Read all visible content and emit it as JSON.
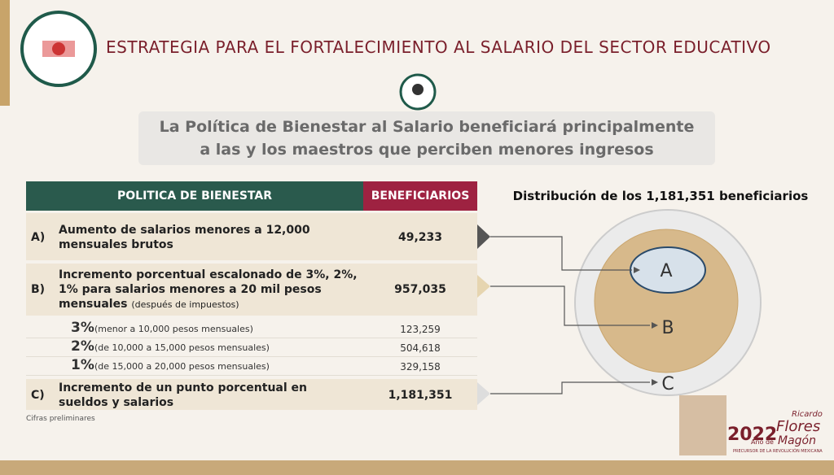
{
  "header": {
    "title": "ESTRATEGIA PARA EL FORTALECIMIENTO AL SALARIO DEL SECTOR EDUCATIVO",
    "subtitle_lines": [
      "La Política de Bienestar al Salario beneficiará principalmente",
      "a las y los maestros que perciben menores ingresos"
    ]
  },
  "table": {
    "headers": [
      "POLITICA DE BIENESTAR",
      "BENEFICIARIOS"
    ],
    "rows": [
      {
        "letter": "A)",
        "text": "Aumento de salarios menores a 12,000 mensuales brutos",
        "value": "49,233"
      },
      {
        "letter": "B)",
        "text": "Incremento porcentual escalonado de 3%, 2%, 1% para salarios menores a 20 mil pesos mensuales",
        "note": "(después de impuestos)",
        "value": "957,035"
      },
      {
        "letter": "C)",
        "text": "Incremento de un punto porcentual en sueldos y salarios",
        "value": "1,181,351"
      }
    ],
    "subrows": [
      {
        "pct": "3%",
        "desc": "(menor a 10,000 pesos mensuales)",
        "value": "123,259"
      },
      {
        "pct": "2%",
        "desc": "(de 10,000 a 15,000 pesos mensuales)",
        "value": "504,618"
      },
      {
        "pct": "1%",
        "desc": "(de 15,000 a 20,000 pesos mensuales)",
        "value": "329,158"
      }
    ]
  },
  "footnote": "Cifras preliminares",
  "diagram": {
    "title": "Distribución de los 1,181,351 beneficiarios",
    "labels": [
      "A",
      "B",
      "C"
    ]
  },
  "logo": {
    "year": "2022",
    "ano": "Año de",
    "name1": "Ricardo",
    "name2": "Flores",
    "name3": "Magón",
    "tagline": "PRECURSOR DE LA REVOLUCIÓN MEXICANA"
  }
}
